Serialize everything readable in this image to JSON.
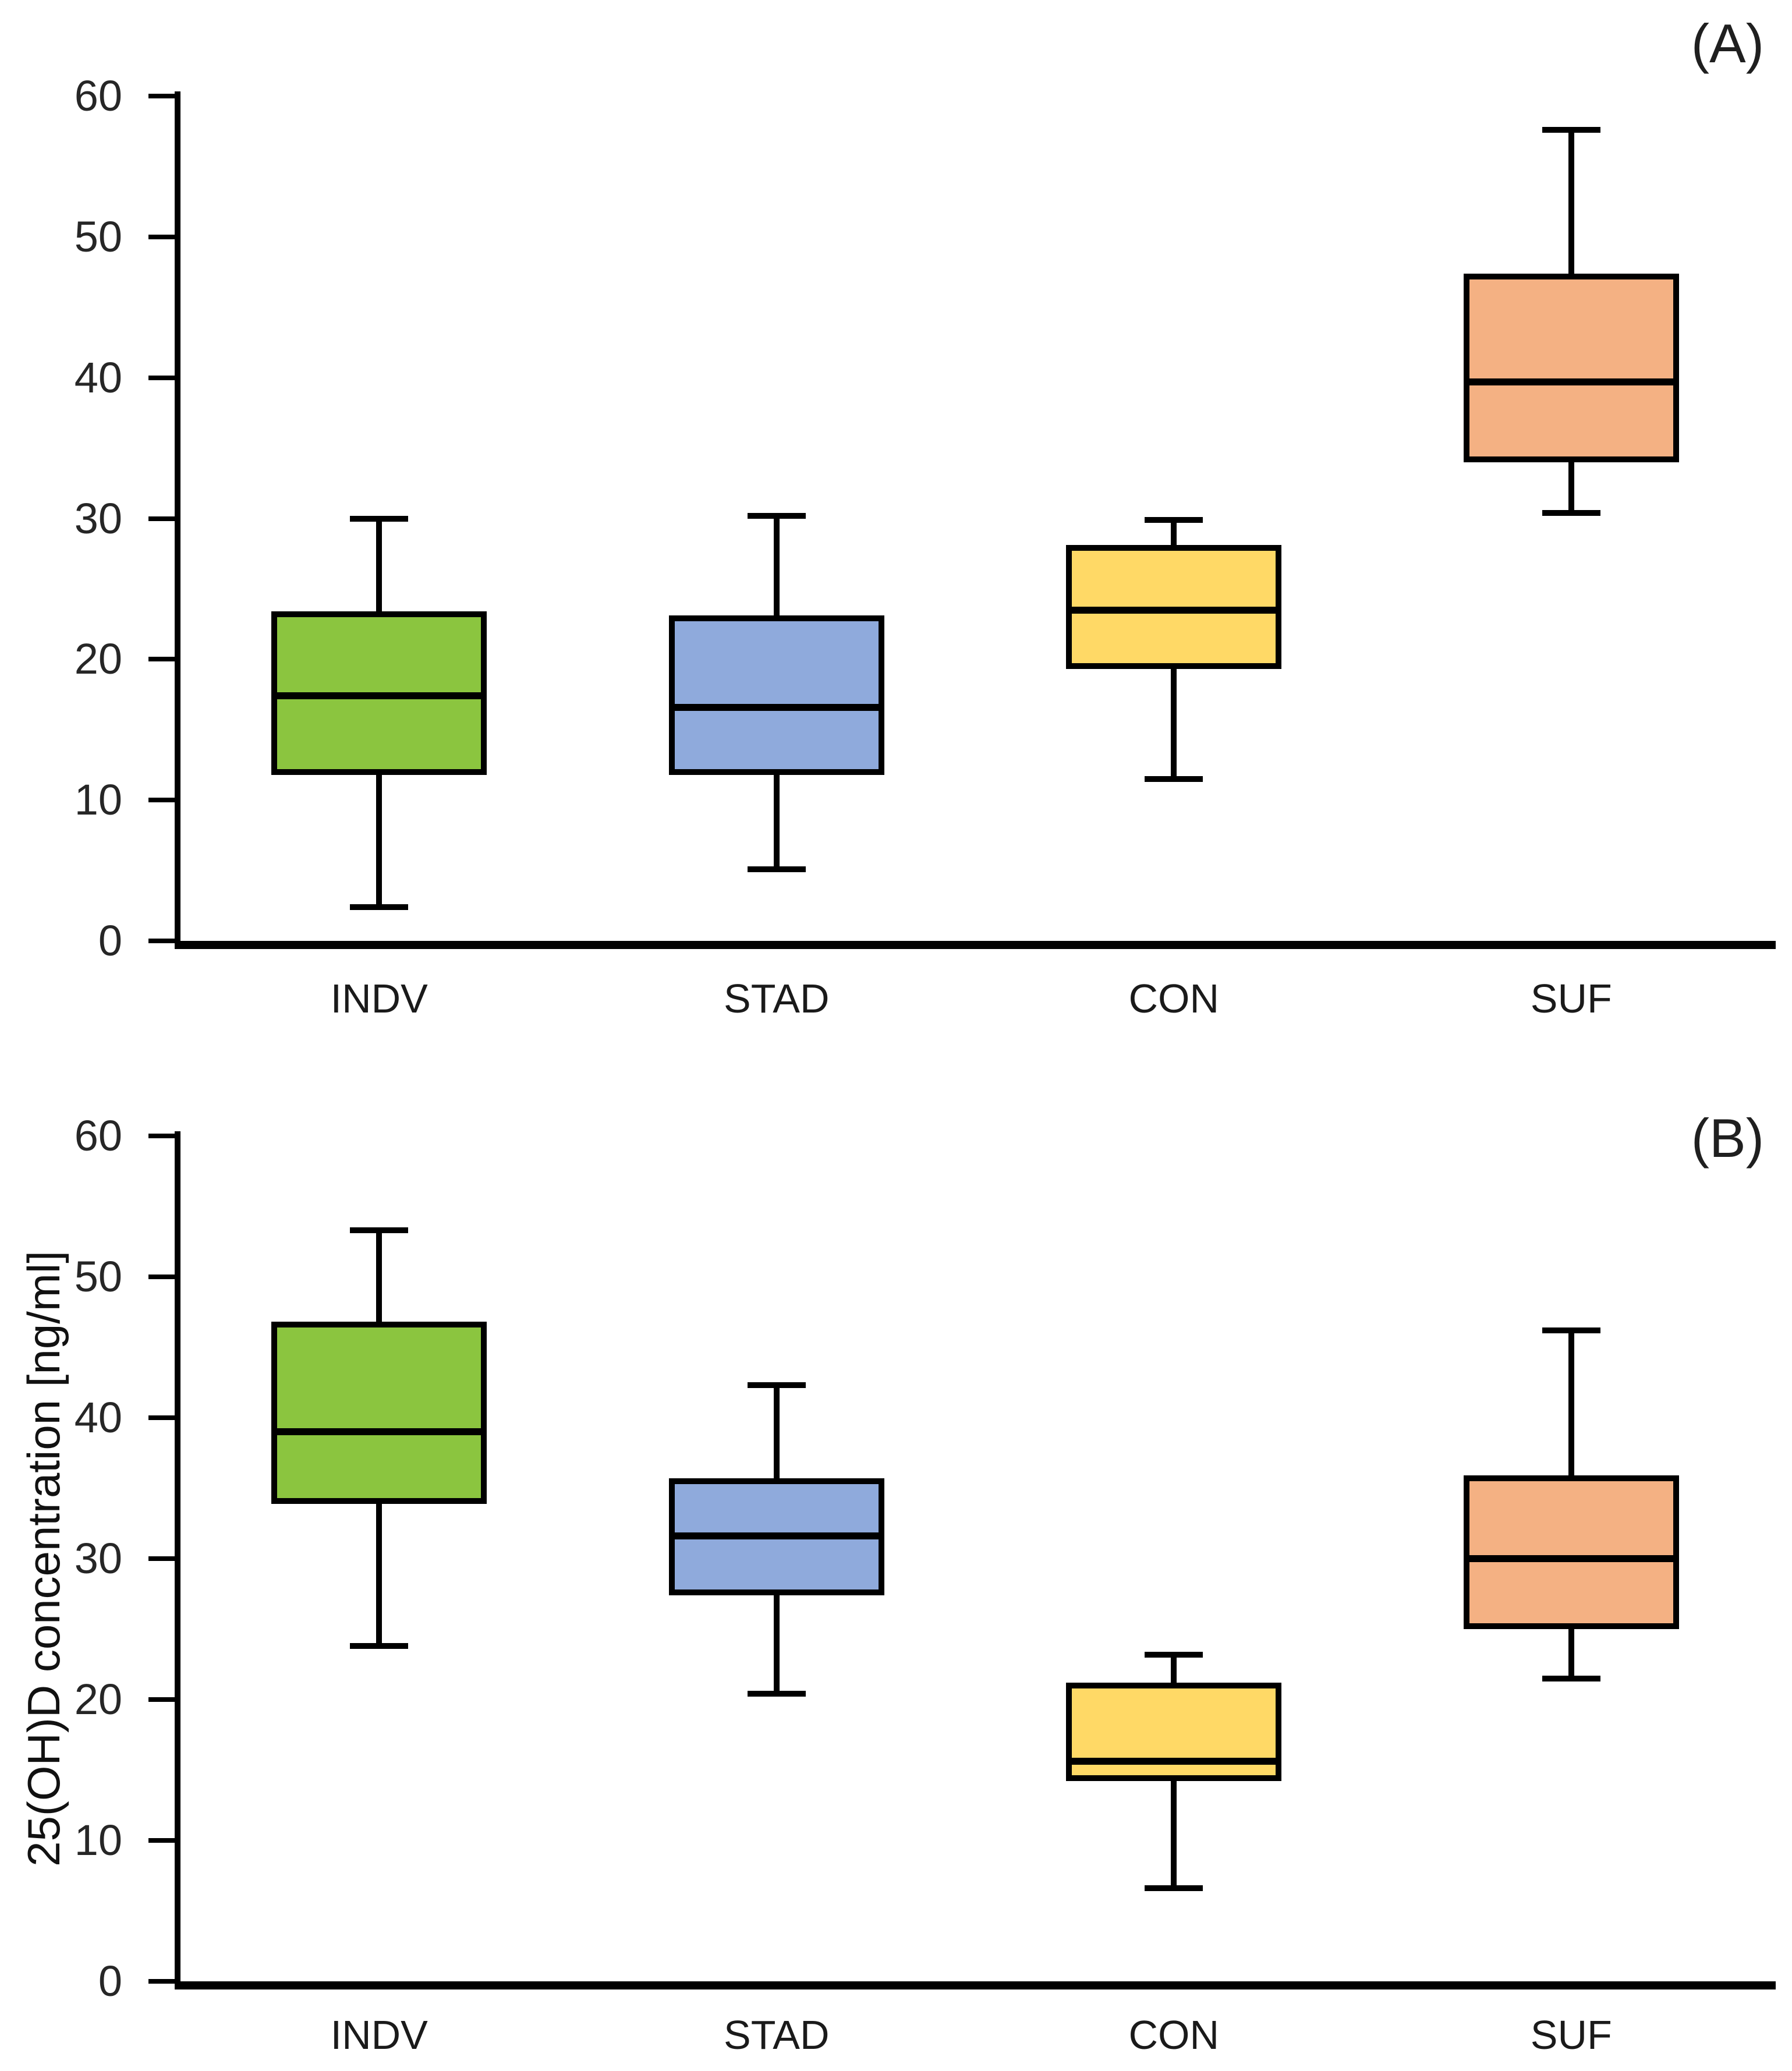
{
  "chart_data": {
    "type": "box",
    "title": "",
    "xlabel": "",
    "ylabel": "25(OH)D concentration [ng/ml]",
    "grid": false,
    "legend": "none",
    "colors": {
      "INDV": "#8BC53F",
      "STAD": "#8FAADC",
      "CON": "#FFD966",
      "SUF": "#F4B183"
    },
    "panels": [
      {
        "id": "A",
        "annotation": "(A)",
        "ylim": [
          0,
          60
        ],
        "yticks": [
          0,
          10,
          20,
          30,
          40,
          50,
          60
        ],
        "categories": [
          "INDV",
          "STAD",
          "CON",
          "SUF"
        ],
        "series": [
          {
            "label": "INDV",
            "color": "#8BC53F",
            "whisker_low": 2.4,
            "q1": 11.8,
            "median": 17.4,
            "q3": 23.4,
            "whisker_high": 30.0
          },
          {
            "label": "STAD",
            "color": "#8FAADC",
            "whisker_low": 5.1,
            "q1": 11.8,
            "median": 16.6,
            "q3": 23.1,
            "whisker_high": 30.2
          },
          {
            "label": "CON",
            "color": "#FFD966",
            "whisker_low": 11.5,
            "q1": 19.3,
            "median": 23.5,
            "q3": 28.1,
            "whisker_high": 29.9
          },
          {
            "label": "SUF",
            "color": "#F4B183",
            "whisker_low": 30.4,
            "q1": 34.0,
            "median": 39.7,
            "q3": 47.4,
            "whisker_high": 57.6
          }
        ]
      },
      {
        "id": "B",
        "annotation": "(B)",
        "ylim": [
          0,
          60
        ],
        "yticks": [
          0,
          10,
          20,
          30,
          40,
          50,
          60
        ],
        "categories": [
          "INDV",
          "STAD",
          "CON",
          "SUF"
        ],
        "series": [
          {
            "label": "INDV",
            "color": "#8BC53F",
            "whisker_low": 23.8,
            "q1": 33.9,
            "median": 39.0,
            "q3": 46.8,
            "whisker_high": 53.3
          },
          {
            "label": "STAD",
            "color": "#8FAADC",
            "whisker_low": 20.4,
            "q1": 27.4,
            "median": 31.6,
            "q3": 35.7,
            "whisker_high": 42.3
          },
          {
            "label": "CON",
            "color": "#FFD966",
            "whisker_low": 6.6,
            "q1": 14.2,
            "median": 15.6,
            "q3": 21.2,
            "whisker_high": 23.2
          },
          {
            "label": "SUF",
            "color": "#F4B183",
            "whisker_low": 21.5,
            "q1": 25.0,
            "median": 30.0,
            "q3": 35.9,
            "whisker_high": 46.2
          }
        ]
      }
    ]
  }
}
